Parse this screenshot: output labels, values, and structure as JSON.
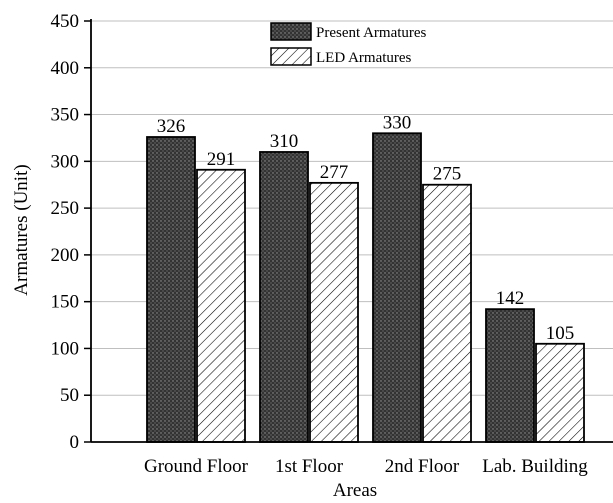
{
  "chart_data": {
    "type": "bar",
    "categories": [
      "Ground Floor",
      "1st Floor",
      "2nd Floor",
      "Lab. Building"
    ],
    "series": [
      {
        "name": "Present Armatures",
        "values": [
          326,
          310,
          330,
          142
        ],
        "pattern": "dark-dotted",
        "fill_color": "#3a3a3a"
      },
      {
        "name": "LED Armatures",
        "values": [
          291,
          277,
          275,
          105
        ],
        "pattern": "diagonal-hatch",
        "fill_color": "#ffffff"
      }
    ],
    "xlabel": "Areas",
    "ylabel": "Armatures (Unit)",
    "ylim": [
      0,
      450
    ],
    "yticks": [
      0,
      50,
      100,
      150,
      200,
      250,
      300,
      350,
      400,
      450
    ],
    "grid": true,
    "legend_position": "top-center",
    "data_labels": true
  }
}
